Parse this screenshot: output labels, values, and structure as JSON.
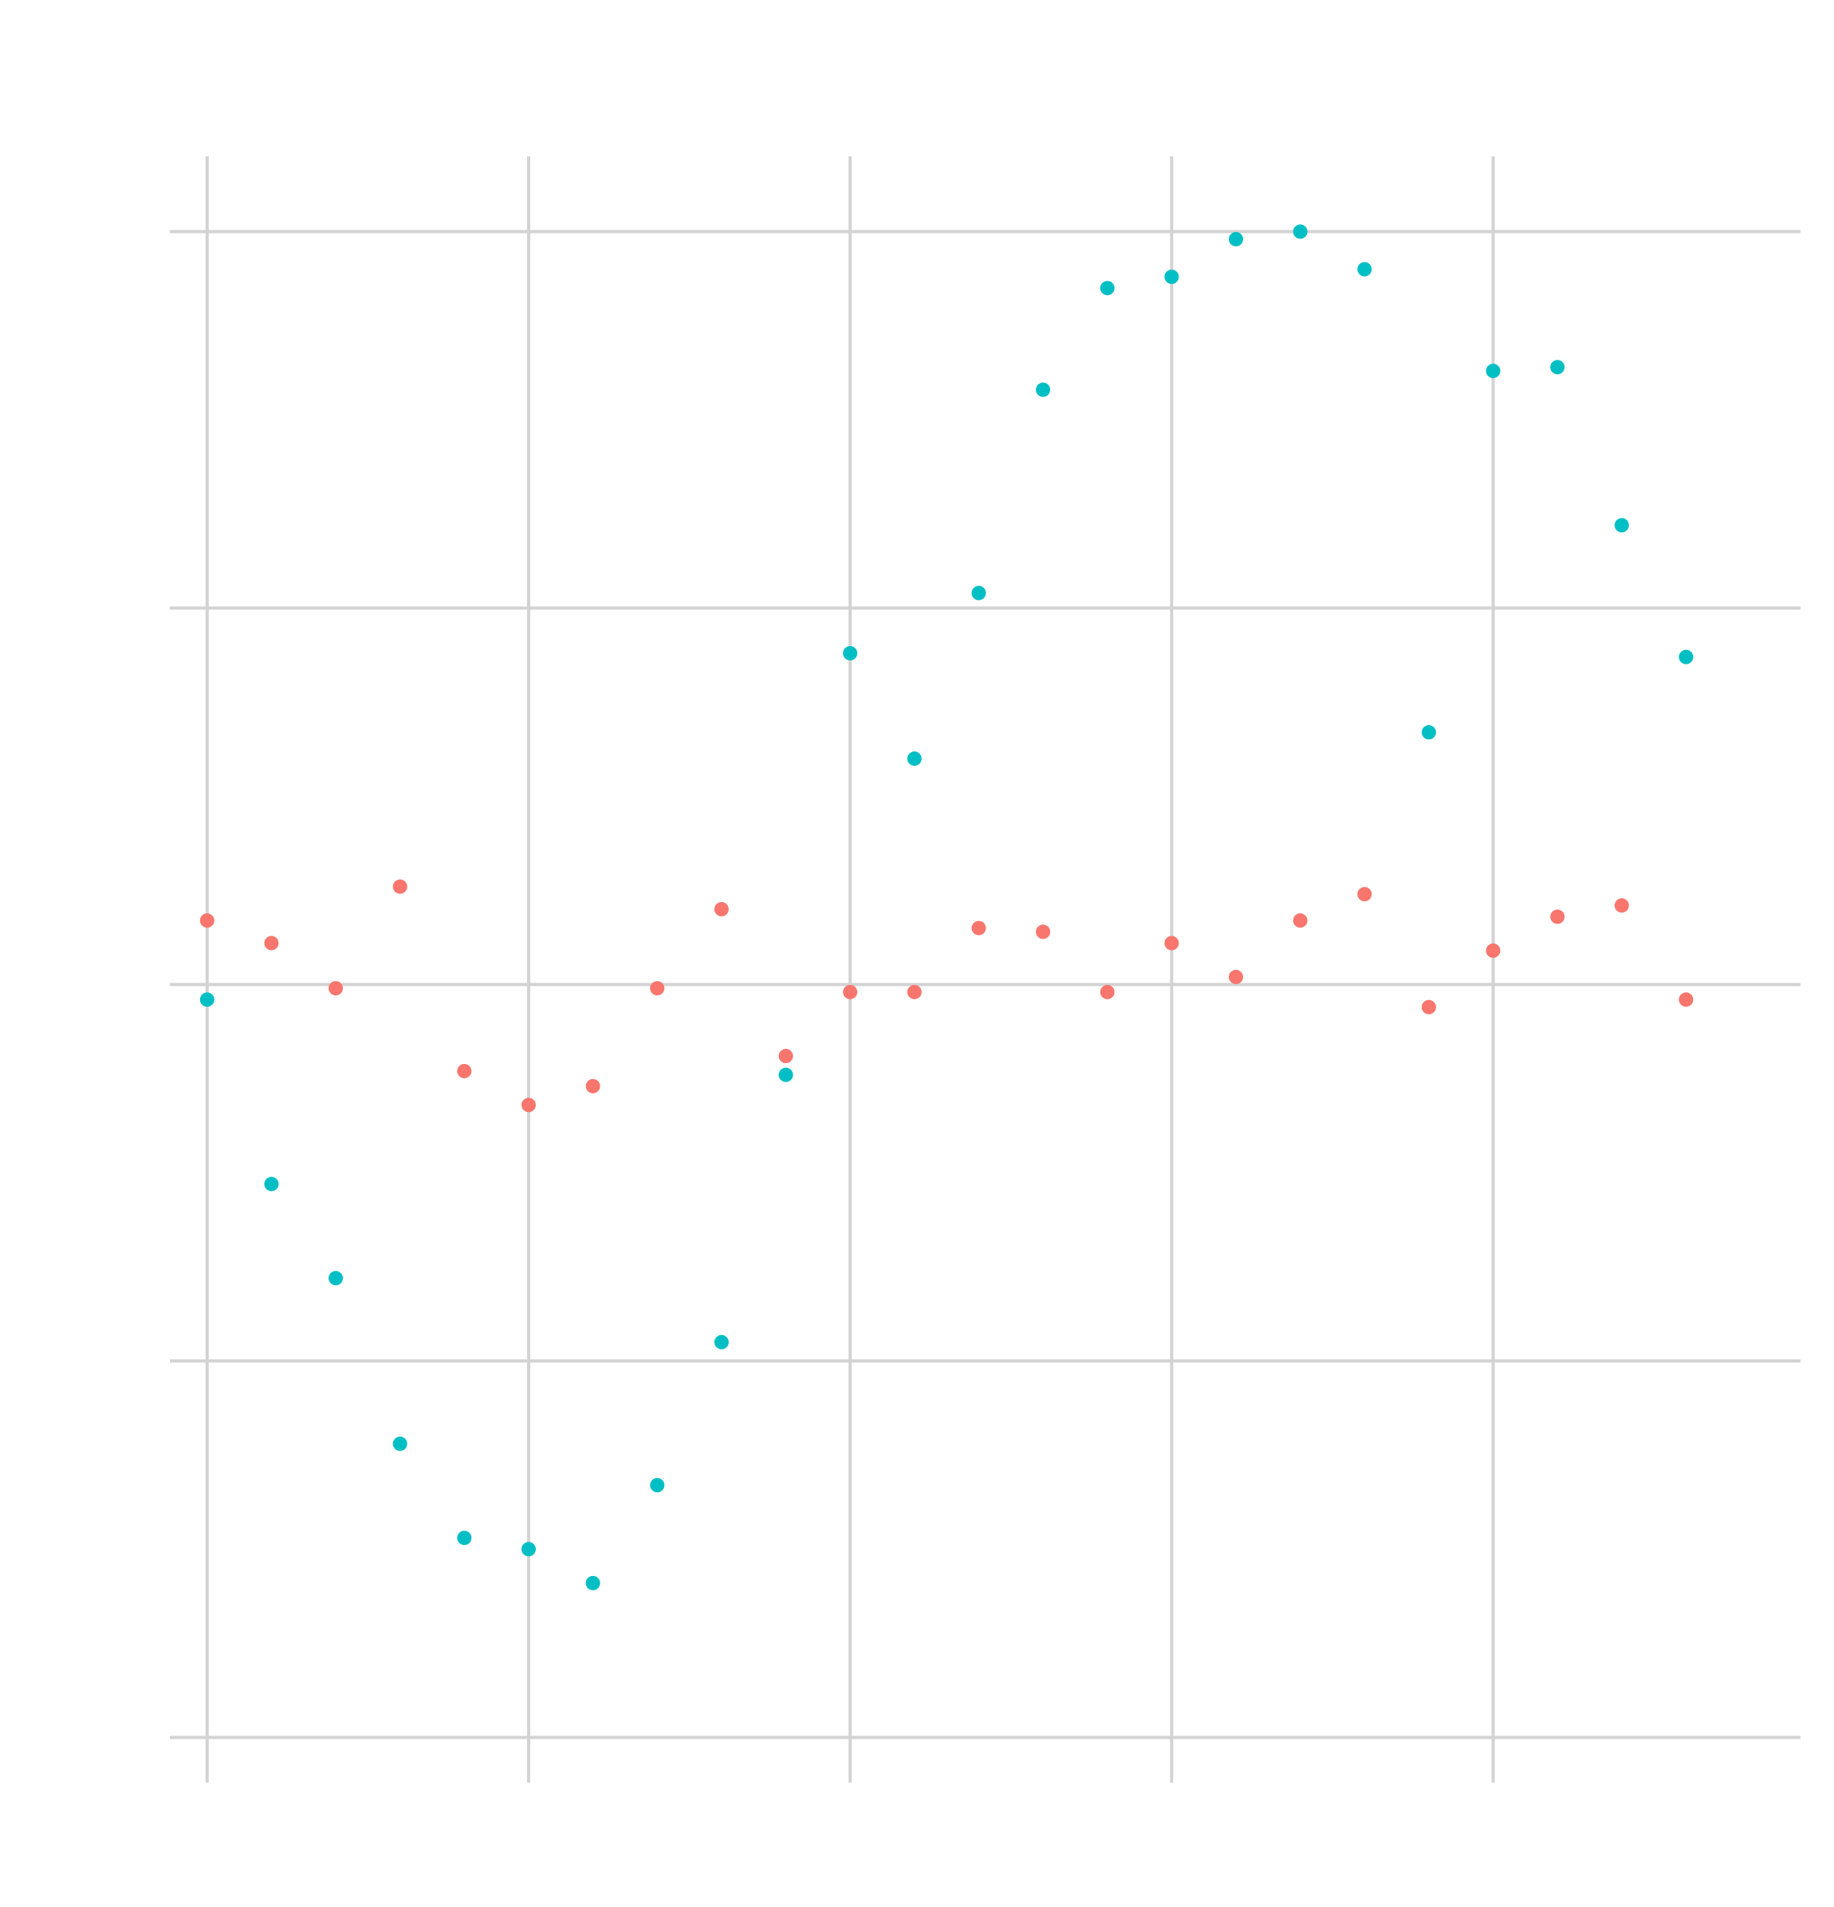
{
  "chart_data": {
    "type": "scatter",
    "title": "",
    "xlabel": "",
    "ylabel": "",
    "xlim": [
      -0.116,
      4.956
    ],
    "ylim": [
      -2.12,
      2.2
    ],
    "x_gridlines": [
      0,
      1,
      2,
      3,
      4
    ],
    "y_gridlines": [
      -2,
      -1,
      0,
      1,
      2
    ],
    "grid": true,
    "legend": "none",
    "colors": {
      "series_1": "#F8766D",
      "series_2": "#00BFC4",
      "grid": "#d3d3d3"
    },
    "x": [
      0,
      0.2,
      0.4,
      0.6,
      0.8,
      1.0,
      1.2,
      1.4,
      1.6,
      1.8,
      2.0,
      2.2,
      2.4,
      2.6,
      2.8,
      3.0,
      3.2,
      3.4,
      3.6,
      3.8,
      4.0,
      4.2,
      4.4,
      4.6
    ],
    "series": [
      {
        "values": [
          0.17,
          0.11,
          -0.01,
          0.26,
          -0.23,
          -0.32,
          -0.27,
          -0.01,
          0.2,
          -0.19,
          -0.02,
          -0.02,
          0.15,
          0.14,
          -0.02,
          0.11,
          0.02,
          0.17,
          0.24,
          -0.06,
          0.09,
          0.18,
          0.21,
          -0.04
        ]
      },
      {
        "values": [
          -0.04,
          -0.53,
          -0.78,
          -1.22,
          -1.47,
          -1.5,
          -1.59,
          -1.33,
          -0.95,
          -0.24,
          0.88,
          0.6,
          1.04,
          1.58,
          1.85,
          1.88,
          1.98,
          2.0,
          1.9,
          0.67,
          1.63,
          1.64,
          1.22,
          0.87
        ]
      }
    ]
  }
}
